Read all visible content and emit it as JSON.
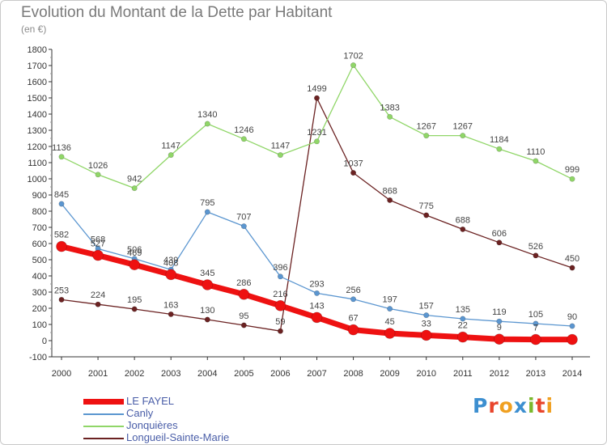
{
  "header": {
    "title": "Evolution du Montant de la Dette par Habitant",
    "subtitle": "(en €)"
  },
  "brand": {
    "text": "Proxiti",
    "letter_colors": [
      "#3d8fd0",
      "#e8452c",
      "#f0a020",
      "#3d8fd0",
      "#7ab82c",
      "#e8452c",
      "#f0a020"
    ]
  },
  "chart_data": {
    "type": "line",
    "title": "Evolution du Montant de la Dette par Habitant",
    "subtitle": "(en €)",
    "xlabel": "",
    "ylabel": "",
    "x": [
      "2000",
      "2001",
      "2002",
      "2003",
      "2004",
      "2005",
      "2006",
      "2007",
      "2008",
      "2009",
      "2010",
      "2011",
      "2012",
      "2013",
      "2014"
    ],
    "ylim": [
      -100,
      1800
    ],
    "yticks": [
      -100,
      0,
      100,
      200,
      300,
      400,
      500,
      600,
      700,
      800,
      900,
      1000,
      1100,
      1200,
      1300,
      1400,
      1500,
      1600,
      1700,
      1800
    ],
    "grid": false,
    "legend_position": "bottom-left",
    "series": [
      {
        "name": "LE FAYEL",
        "color": "#ee1111",
        "values": [
          582,
          527,
          469,
          408,
          345,
          286,
          216,
          143,
          67,
          45,
          33,
          22,
          9,
          7,
          7
        ],
        "labels": [
          "582",
          "527",
          "469",
          "408",
          "345",
          "286",
          "216",
          "143",
          "67",
          "45",
          "33",
          "22",
          "9",
          "7",
          ""
        ]
      },
      {
        "name": "Canly",
        "color": "#5b96d0",
        "values": [
          845,
          568,
          506,
          439,
          795,
          707,
          396,
          293,
          256,
          197,
          157,
          135,
          119,
          105,
          90
        ],
        "labels": [
          "845",
          "568",
          "506",
          "439",
          "795",
          "707",
          "396",
          "293",
          "256",
          "197",
          "157",
          "135",
          "119",
          "105",
          "90"
        ]
      },
      {
        "name": "Jonquières",
        "color": "#90d668",
        "values": [
          1136,
          1026,
          942,
          1147,
          1340,
          1246,
          1147,
          1231,
          1702,
          1383,
          1267,
          1267,
          1184,
          1110,
          999
        ],
        "labels": [
          "1136",
          "1026",
          "942",
          "1147",
          "1340",
          "1246",
          "1147",
          "1231",
          "1702",
          "1383",
          "1267",
          "1267",
          "1184",
          "1110",
          "999"
        ]
      },
      {
        "name": "Longueil-Sainte-Marie",
        "color": "#6b2222",
        "segments": [
          {
            "x": [
              "2000",
              "2001",
              "2002",
              "2003",
              "2004",
              "2005",
              "2006"
            ],
            "values": [
              253,
              224,
              195,
              163,
              130,
              95,
              59
            ]
          },
          {
            "x": [
              "2006",
              "2007",
              "2008",
              "2009",
              "2010",
              "2011",
              "2012",
              "2013",
              "2014"
            ],
            "values": [
              59,
              1499,
              1037,
              868,
              775,
              688,
              606,
              526,
              450
            ]
          }
        ],
        "labels": [
          "253",
          "224",
          "195",
          "163",
          "130",
          "95",
          "59",
          "1499",
          "1037",
          "868",
          "775",
          "688",
          "606",
          "526",
          "450"
        ]
      }
    ]
  }
}
